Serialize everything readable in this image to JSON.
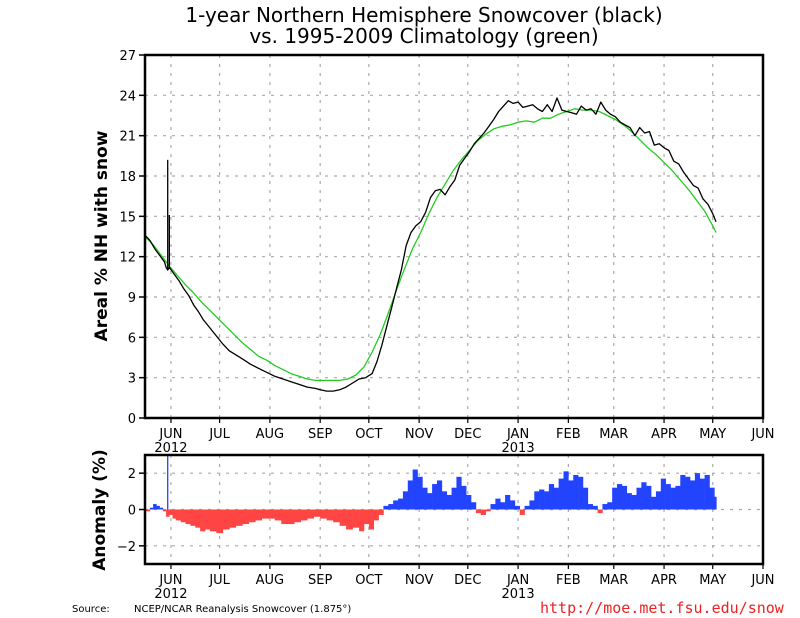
{
  "chart_data": [
    {
      "type": "line",
      "title": "1-year Northern Hemisphere Snowcover (black)",
      "subtitle": "vs. 1995-2009 Climatology (green)",
      "xlabel": "",
      "ylabel": "Areal % NH with snow",
      "x_unit": "days since 2012-05-16",
      "xlim": [
        0,
        381
      ],
      "ylim": [
        0,
        27
      ],
      "yticks": [
        0,
        3,
        6,
        9,
        12,
        15,
        18,
        21,
        24,
        27
      ],
      "xticks": [
        {
          "day": 16,
          "label": "JUN",
          "year": "2012"
        },
        {
          "day": 46,
          "label": "JUL",
          "year": ""
        },
        {
          "day": 77,
          "label": "AUG",
          "year": ""
        },
        {
          "day": 108,
          "label": "SEP",
          "year": ""
        },
        {
          "day": 138,
          "label": "OCT",
          "year": ""
        },
        {
          "day": 169,
          "label": "NOV",
          "year": ""
        },
        {
          "day": 199,
          "label": "DEC",
          "year": ""
        },
        {
          "day": 230,
          "label": "JAN",
          "year": "2013"
        },
        {
          "day": 261,
          "label": "FEB",
          "year": ""
        },
        {
          "day": 289,
          "label": "MAR",
          "year": ""
        },
        {
          "day": 320,
          "label": "APR",
          "year": ""
        },
        {
          "day": 350,
          "label": "MAY",
          "year": ""
        },
        {
          "day": 381,
          "label": "JUN",
          "year": ""
        }
      ],
      "grid": true,
      "series": [
        {
          "name": "Snowcover 2012-2013",
          "color": "#000000",
          "x": [
            0,
            3,
            6,
            9,
            12,
            13,
            14,
            15,
            18,
            21,
            24,
            27,
            30,
            33,
            36,
            40,
            44,
            48,
            52,
            56,
            60,
            65,
            70,
            75,
            80,
            85,
            90,
            95,
            100,
            105,
            108,
            112,
            116,
            120,
            124,
            128,
            132,
            136,
            140,
            143,
            146,
            149,
            152,
            155,
            158,
            161,
            164,
            167,
            170,
            173,
            176,
            179,
            182,
            185,
            188,
            191,
            194,
            197,
            200,
            203,
            206,
            209,
            212,
            215,
            218,
            221,
            224,
            227,
            230,
            233,
            236,
            239,
            242,
            245,
            248,
            251,
            254,
            257,
            260,
            263,
            266,
            269,
            272,
            275,
            278,
            281,
            284,
            287,
            290,
            293,
            296,
            299,
            302,
            305,
            308,
            311,
            314,
            317,
            320,
            323,
            326,
            329,
            332,
            335,
            338,
            341,
            344,
            347,
            350,
            352
          ],
          "values": [
            13.6,
            13.2,
            12.6,
            12.1,
            11.6,
            11.2,
            11.0,
            11.2,
            10.7,
            10.2,
            9.6,
            9.1,
            8.4,
            7.9,
            7.3,
            6.7,
            6.1,
            5.5,
            5.0,
            4.7,
            4.4,
            4.0,
            3.7,
            3.4,
            3.1,
            2.9,
            2.7,
            2.5,
            2.3,
            2.2,
            2.1,
            2.0,
            2.0,
            2.1,
            2.3,
            2.6,
            2.9,
            3.0,
            3.3,
            4.2,
            5.4,
            6.8,
            8.2,
            9.6,
            11.0,
            12.8,
            13.8,
            14.3,
            14.6,
            15.3,
            16.4,
            16.9,
            17.0,
            16.6,
            17.2,
            17.7,
            18.8,
            19.3,
            19.8,
            20.4,
            20.8,
            21.2,
            21.7,
            22.2,
            22.8,
            23.2,
            23.6,
            23.4,
            23.5,
            23.1,
            23.2,
            23.3,
            23.0,
            22.8,
            23.3,
            22.8,
            23.8,
            22.9,
            22.8,
            22.7,
            22.6,
            23.2,
            22.9,
            23.0,
            22.6,
            23.5,
            22.9,
            22.6,
            22.4,
            22.0,
            21.8,
            21.6,
            21.0,
            21.6,
            21.2,
            21.3,
            20.3,
            20.4,
            20.1,
            19.9,
            19.1,
            18.9,
            18.3,
            17.8,
            17.3,
            17.1,
            16.3,
            15.9,
            15.2,
            14.6
          ],
          "spikes": [
            {
              "x": 14,
              "top": 19.2,
              "bottom": 11.1
            },
            {
              "x": 15,
              "top": 15.1,
              "bottom": 11.1
            }
          ]
        },
        {
          "name": "1995-2009 Climatology",
          "color": "#22cc22",
          "x": [
            0,
            5,
            10,
            15,
            20,
            25,
            30,
            35,
            40,
            45,
            50,
            55,
            60,
            65,
            70,
            75,
            80,
            85,
            90,
            95,
            100,
            105,
            110,
            115,
            120,
            125,
            130,
            135,
            140,
            145,
            150,
            155,
            160,
            165,
            170,
            175,
            180,
            185,
            190,
            195,
            200,
            205,
            210,
            215,
            220,
            225,
            230,
            235,
            240,
            245,
            250,
            255,
            260,
            265,
            270,
            275,
            280,
            285,
            290,
            295,
            300,
            305,
            310,
            315,
            320,
            325,
            330,
            335,
            340,
            345,
            350,
            352
          ],
          "values": [
            13.5,
            12.9,
            12.1,
            11.3,
            10.6,
            9.9,
            9.3,
            8.6,
            8.0,
            7.4,
            6.8,
            6.2,
            5.6,
            5.1,
            4.6,
            4.3,
            3.9,
            3.6,
            3.3,
            3.1,
            2.9,
            2.8,
            2.8,
            2.8,
            2.8,
            2.9,
            3.2,
            3.8,
            4.9,
            6.2,
            7.8,
            9.5,
            11.1,
            12.6,
            13.8,
            15.2,
            16.4,
            17.4,
            18.4,
            19.2,
            19.9,
            20.6,
            21.1,
            21.5,
            21.7,
            21.8,
            22.0,
            22.1,
            22.0,
            22.3,
            22.3,
            22.6,
            22.8,
            23.0,
            22.9,
            22.9,
            22.8,
            22.5,
            22.2,
            21.8,
            21.3,
            20.7,
            20.1,
            19.6,
            19.0,
            18.4,
            17.7,
            17.0,
            16.2,
            15.4,
            14.3,
            13.8
          ]
        }
      ]
    },
    {
      "type": "bar",
      "title": "",
      "ylabel": "Anomaly (%)",
      "x_unit": "days since 2012-05-16",
      "xlim": [
        0,
        381
      ],
      "ylim": [
        -3,
        3
      ],
      "yticks": [
        -2,
        0,
        2
      ],
      "grid": true,
      "positive_color": "#2244ff",
      "negative_color": "#ff4444",
      "x": [
        0,
        3,
        5,
        7,
        9,
        11,
        13,
        15,
        17,
        19,
        22,
        25,
        28,
        31,
        34,
        37,
        40,
        44,
        48,
        52,
        56,
        60,
        64,
        68,
        72,
        76,
        80,
        84,
        88,
        92,
        96,
        100,
        104,
        108,
        112,
        116,
        120,
        124,
        128,
        132,
        135,
        138,
        141,
        144,
        147,
        150,
        153,
        156,
        159,
        162,
        165,
        168,
        171,
        174,
        177,
        180,
        183,
        186,
        189,
        192,
        195,
        198,
        201,
        204,
        207,
        210,
        213,
        216,
        219,
        222,
        225,
        228,
        231,
        234,
        237,
        240,
        243,
        246,
        249,
        252,
        255,
        258,
        261,
        264,
        267,
        270,
        273,
        276,
        279,
        282,
        285,
        288,
        291,
        294,
        297,
        300,
        303,
        306,
        309,
        312,
        315,
        318,
        321,
        324,
        327,
        330,
        333,
        336,
        339,
        342,
        345,
        348,
        351
      ],
      "values": [
        -0.1,
        0.1,
        0.3,
        0.2,
        0.1,
        -0.1,
        -0.4,
        -0.3,
        -0.5,
        -0.6,
        -0.7,
        -0.8,
        -0.9,
        -1.0,
        -1.2,
        -1.1,
        -1.2,
        -1.3,
        -1.1,
        -1.0,
        -0.9,
        -0.8,
        -0.7,
        -0.6,
        -0.5,
        -0.5,
        -0.6,
        -0.8,
        -0.8,
        -0.7,
        -0.6,
        -0.5,
        -0.4,
        -0.5,
        -0.6,
        -0.7,
        -0.9,
        -1.1,
        -1.0,
        -1.2,
        -0.8,
        -1.1,
        -0.6,
        -0.3,
        0.2,
        0.3,
        0.5,
        0.6,
        1.0,
        1.6,
        2.2,
        1.8,
        1.2,
        0.9,
        1.4,
        1.6,
        1.0,
        0.8,
        1.2,
        1.8,
        1.3,
        0.8,
        0.4,
        -0.2,
        -0.3,
        -0.1,
        0.3,
        0.6,
        0.4,
        0.8,
        0.5,
        0.2,
        -0.3,
        0.2,
        0.5,
        1.0,
        1.1,
        1.0,
        1.4,
        1.2,
        1.7,
        2.1,
        1.6,
        1.9,
        1.8,
        1.2,
        0.3,
        0.2,
        -0.2,
        0.3,
        0.4,
        1.2,
        1.4,
        1.3,
        0.9,
        0.8,
        1.2,
        1.5,
        1.3,
        0.7,
        1.0,
        1.7,
        1.4,
        1.2,
        1.3,
        1.9,
        1.8,
        1.6,
        2.0,
        1.7,
        1.9,
        1.2,
        0.7
      ],
      "spike": {
        "x": 14,
        "value": 6.5
      }
    }
  ],
  "footer": {
    "source_label": "Source:",
    "source_text": "NCEP/NCAR Reanalysis Snowcover (1.875°)",
    "url": "http://moe.met.fsu.edu/snow"
  }
}
